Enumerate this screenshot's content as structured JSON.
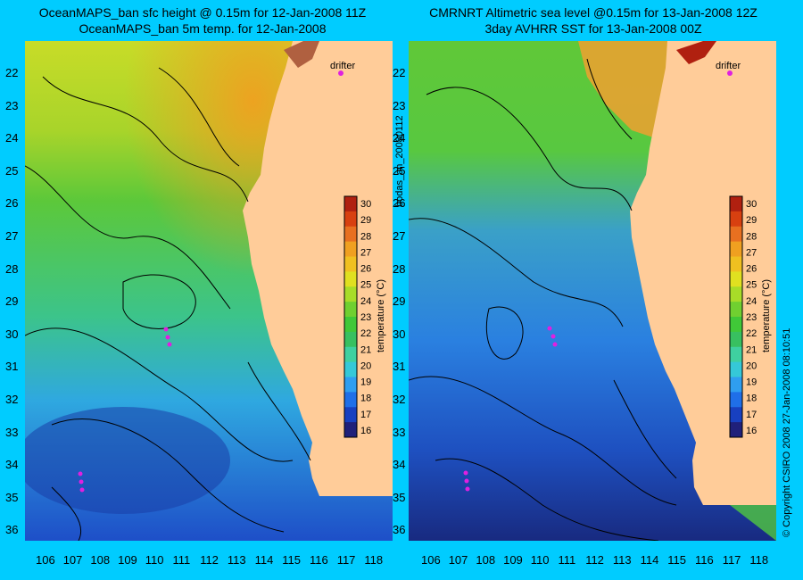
{
  "left_panel": {
    "title_line1": "OceanMAPS_ban sfc height @ 0.15m for 12-Jan-2008 11Z",
    "title_line2": "OceanMAPS_ban 5m temp. for 12-Jan-2008",
    "drifter_label": "drifter",
    "colorbar_label": "temperature (°C)"
  },
  "right_panel": {
    "title_line1": "CMRNRT Altimetric sea level  @0.15m  for 13-Jan-2008 12Z",
    "title_line2": "3day AVHRR SST for 13-Jan-2008 00Z",
    "drifter_label": "drifter",
    "colorbar_label": "temperature (°C)"
  },
  "side_text": {
    "analysis_id": "bodas_an_20080112",
    "copyright": "© Copyright CSIRO 2008    27-Jan-2008 08:10:51"
  },
  "axes": {
    "lat_ticks": [
      "22",
      "23",
      "24",
      "25",
      "26",
      "27",
      "28",
      "29",
      "30",
      "31",
      "32",
      "33",
      "34",
      "35",
      "36"
    ],
    "lon_ticks": [
      "106",
      "107",
      "108",
      "109",
      "110",
      "111",
      "112",
      "113",
      "114",
      "115",
      "116",
      "117",
      "118"
    ]
  },
  "colorbar": {
    "ticks": [
      "30",
      "29",
      "28",
      "27",
      "26",
      "25",
      "24",
      "23",
      "22",
      "21",
      "20",
      "19",
      "18",
      "17",
      "16"
    ],
    "range": [
      15.5,
      30.5
    ],
    "colors": [
      "#20207a",
      "#1840c0",
      "#1f6fe8",
      "#2f9ef0",
      "#35c8d8",
      "#3fd0a0",
      "#38c060",
      "#40c838",
      "#70d030",
      "#a8dc28",
      "#e0e020",
      "#f0c020",
      "#f0a020",
      "#e87020",
      "#d84010",
      "#b02010"
    ]
  },
  "colors": {
    "background": "#00ccff",
    "land": "#ffcc99",
    "deep_water": "#1e5fd8",
    "warm_water": "#f0a030"
  }
}
